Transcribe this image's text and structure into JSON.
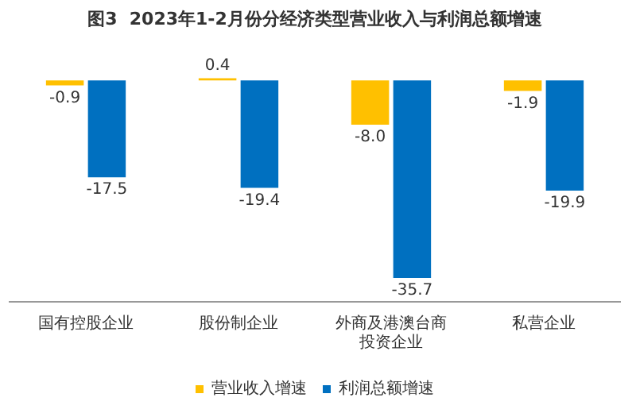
{
  "chart_data": {
    "type": "bar",
    "title": "图3  2023年1-2月份分经济类型营业收入与利润总额增速",
    "categories": [
      "国有控股企业",
      "股份制企业",
      "外商及港澳台商投资企业",
      "私营企业"
    ],
    "series": [
      {
        "name": "营业收入增速",
        "color": "#ffc000",
        "values": [
          -0.9,
          0.4,
          -8.0,
          -1.9
        ],
        "value_labels": [
          "-0.9",
          "0.4",
          "-8.0",
          "-1.9"
        ]
      },
      {
        "name": "利润总额增速",
        "color": "#0070c0",
        "values": [
          -17.5,
          -19.4,
          -35.7,
          -19.9
        ],
        "value_labels": [
          "-17.5",
          "-19.4",
          "-35.7",
          "-19.9"
        ]
      }
    ],
    "legend": "bottom",
    "grid": false,
    "tick_labels": "x"
  }
}
